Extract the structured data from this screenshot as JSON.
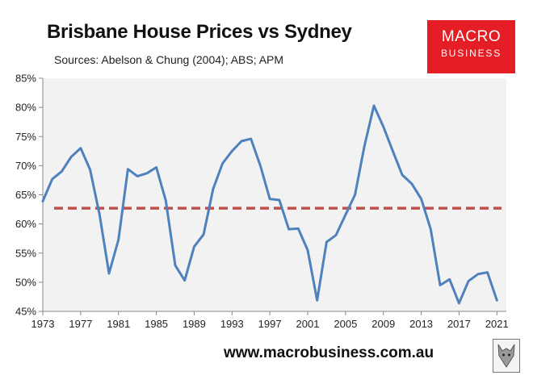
{
  "header": {
    "title": "Brisbane House Prices vs Sydney",
    "subtitle": "Sources: Abelson & Chung (2004); ABS; APM"
  },
  "logo": {
    "line1": "MACRO",
    "line2": "BUSINESS",
    "color": "#e51d24"
  },
  "footer": {
    "url": "www.macrobusiness.com.au"
  },
  "colors": {
    "series": "#4f81bd",
    "reference": "#c0504d",
    "plot_bg": "#f2f2f2"
  },
  "chart_data": {
    "type": "line",
    "title": "Brisbane House Prices vs Sydney",
    "xlabel": "",
    "ylabel": "",
    "ylim": [
      45,
      85
    ],
    "xlim": [
      1973,
      2022
    ],
    "x_ticks": [
      "1973",
      "1977",
      "1981",
      "1985",
      "1989",
      "1993",
      "1997",
      "2001",
      "2005",
      "2009",
      "2013",
      "2017",
      "2021"
    ],
    "y_ticks": [
      "45%",
      "50%",
      "55%",
      "60%",
      "65%",
      "70%",
      "75%",
      "80%",
      "85%"
    ],
    "grid": false,
    "legend": "none",
    "series": [
      {
        "x": [
          1973,
          1974,
          1975,
          1976,
          1977,
          1978,
          1979,
          1980,
          1981,
          1982,
          1983,
          1984,
          1985,
          1986,
          1987,
          1988,
          1989,
          1990,
          1991,
          1992,
          1993,
          1994,
          1995,
          1996,
          1997,
          1998,
          1999,
          2000,
          2001,
          2002,
          2003,
          2004,
          2005,
          2006,
          2007,
          2008,
          2009,
          2010,
          2011,
          2012,
          2013,
          2014,
          2015,
          2016,
          2017,
          2018,
          2019,
          2020,
          2021
        ],
        "values": [
          63.9,
          67.7,
          69.0,
          71.5,
          73.0,
          69.3,
          61.6,
          51.5,
          57.3,
          69.4,
          68.2,
          68.7,
          69.7,
          64.0,
          52.9,
          50.3,
          56.1,
          58.2,
          66.0,
          70.4,
          72.5,
          74.2,
          74.6,
          70.0,
          64.3,
          64.1,
          59.1,
          59.2,
          55.5,
          46.9,
          56.9,
          58.1,
          61.6,
          65.0,
          73.4,
          80.3,
          76.7,
          72.5,
          68.4,
          66.9,
          64.3,
          59.1,
          49.5,
          50.5,
          46.4,
          50.2,
          51.4,
          51.7,
          46.9
        ]
      }
    ],
    "reference_line": {
      "value": 62.7,
      "style": "dashed"
    }
  }
}
